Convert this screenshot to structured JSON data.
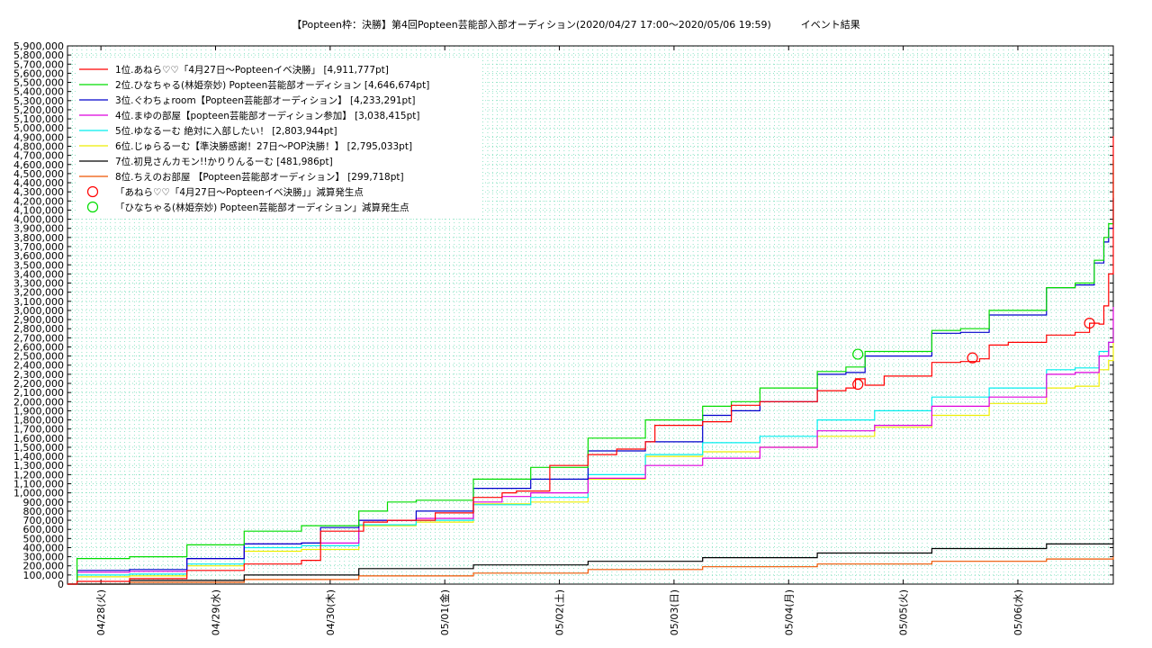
{
  "chart_data": {
    "type": "line",
    "title": "【Popteen枠：決勝】第4回Popteen芸能部入部オーディション(2020/04/27 17:00～2020/05/06 19:59)　　　イベント結果",
    "xlabel": "",
    "ylabel": "",
    "ylim": [
      0,
      5900000
    ],
    "xlim": [
      "2020-04-27T17:00",
      "2020-05-06T19:59"
    ],
    "grid": true,
    "legend_position": "top-left",
    "y_ticks": [
      "0",
      "100,000",
      "200,000",
      "300,000",
      "400,000",
      "500,000",
      "600,000",
      "700,000",
      "800,000",
      "900,000",
      "1,000,000",
      "1,100,000",
      "1,200,000",
      "1,300,000",
      "1,400,000",
      "1,500,000",
      "1,600,000",
      "1,700,000",
      "1,800,000",
      "1,900,000",
      "2,000,000",
      "2,100,000",
      "2,200,000",
      "2,300,000",
      "2,400,000",
      "2,500,000",
      "2,600,000",
      "2,700,000",
      "2,800,000",
      "2,900,000",
      "3,000,000",
      "3,100,000",
      "3,200,000",
      "3,300,000",
      "3,400,000",
      "3,500,000",
      "3,600,000",
      "3,700,000",
      "3,800,000",
      "3,900,000",
      "4,000,000",
      "4,100,000",
      "4,200,000",
      "4,300,000",
      "4,400,000",
      "4,500,000",
      "4,600,000",
      "4,700,000",
      "4,800,000",
      "4,900,000",
      "5,000,000",
      "5,100,000",
      "5,200,000",
      "5,300,000",
      "5,400,000",
      "5,500,000",
      "5,600,000",
      "5,700,000",
      "5,800,000",
      "5,900,000"
    ],
    "x_ticks": [
      {
        "label": "04/28(火)",
        "x": "2020-04-28T00:00"
      },
      {
        "label": "04/29(水)",
        "x": "2020-04-29T00:00"
      },
      {
        "label": "04/30(木)",
        "x": "2020-04-30T00:00"
      },
      {
        "label": "05/01(金)",
        "x": "2020-05-01T00:00"
      },
      {
        "label": "05/02(土)",
        "x": "2020-05-02T00:00"
      },
      {
        "label": "05/03(日)",
        "x": "2020-05-03T00:00"
      },
      {
        "label": "05/04(月)",
        "x": "2020-05-04T00:00"
      },
      {
        "label": "05/05(火)",
        "x": "2020-05-05T00:00"
      },
      {
        "label": "05/06(水)",
        "x": "2020-05-06T00:00"
      }
    ],
    "series": [
      {
        "name": "1位.あねら♡♡「4月27日～Popteenイベ決勝」 [4,911,777pt]",
        "color": "#ff0000",
        "x": [
          "2020-04-27T17:00",
          "2020-04-27T19:00",
          "2020-04-28T06:00",
          "2020-04-28T18:00",
          "2020-04-29T06:00",
          "2020-04-29T18:00",
          "2020-04-29T22:00",
          "2020-04-30T07:00",
          "2020-04-30T12:00",
          "2020-04-30T22:00",
          "2020-05-01T06:00",
          "2020-05-01T12:00",
          "2020-05-01T15:00",
          "2020-05-01T22:00",
          "2020-05-02T06:00",
          "2020-05-02T12:00",
          "2020-05-02T18:00",
          "2020-05-02T20:00",
          "2020-05-03T06:00",
          "2020-05-03T12:00",
          "2020-05-03T18:00",
          "2020-05-04T06:00",
          "2020-05-04T12:00",
          "2020-05-04T14:00",
          "2020-05-04T16:00",
          "2020-05-04T20:00",
          "2020-05-05T06:00",
          "2020-05-05T12:00",
          "2020-05-05T16:00",
          "2020-05-05T18:00",
          "2020-05-05T22:00",
          "2020-05-06T06:00",
          "2020-05-06T12:00",
          "2020-05-06T15:00",
          "2020-05-06T17:00",
          "2020-05-06T18:00",
          "2020-05-06T19:00",
          "2020-05-06T19:59"
        ],
        "y": [
          0,
          30000,
          60000,
          150000,
          220000,
          260000,
          580000,
          680000,
          700000,
          780000,
          950000,
          1000000,
          1020000,
          1300000,
          1420000,
          1480000,
          1560000,
          1740000,
          1780000,
          1960000,
          2000000,
          2120000,
          2150000,
          2250000,
          2180000,
          2280000,
          2430000,
          2440000,
          2470000,
          2620000,
          2650000,
          2730000,
          2760000,
          2860000,
          2850000,
          3050000,
          3400000,
          4911777
        ]
      },
      {
        "name": "2位.ひなちゃる(林姫奈妙) Popteen芸能部オーディション [4,646,674pt]",
        "color": "#00dd00",
        "x": [
          "2020-04-27T17:00",
          "2020-04-27T19:00",
          "2020-04-28T06:00",
          "2020-04-28T18:00",
          "2020-04-29T06:00",
          "2020-04-29T18:00",
          "2020-04-30T06:00",
          "2020-04-30T12:00",
          "2020-04-30T18:00",
          "2020-05-01T06:00",
          "2020-05-01T18:00",
          "2020-05-02T06:00",
          "2020-05-02T18:00",
          "2020-05-03T06:00",
          "2020-05-03T12:00",
          "2020-05-03T18:00",
          "2020-05-04T06:00",
          "2020-05-04T12:00",
          "2020-05-04T16:00",
          "2020-05-05T06:00",
          "2020-05-05T12:00",
          "2020-05-05T18:00",
          "2020-05-06T06:00",
          "2020-05-06T12:00",
          "2020-05-06T16:00",
          "2020-05-06T18:00",
          "2020-05-06T19:00",
          "2020-05-06T19:59"
        ],
        "y": [
          0,
          280000,
          300000,
          430000,
          580000,
          640000,
          800000,
          900000,
          920000,
          1150000,
          1280000,
          1600000,
          1800000,
          1950000,
          2000000,
          2150000,
          2330000,
          2380000,
          2550000,
          2780000,
          2800000,
          3000000,
          3250000,
          3300000,
          3550000,
          3800000,
          3950000,
          4646674
        ]
      },
      {
        "name": "3位.ぐわちょroom【Popteen芸能部オーディション】 [4,233,291pt]",
        "color": "#0000cc",
        "x": [
          "2020-04-27T17:00",
          "2020-04-27T19:00",
          "2020-04-28T06:00",
          "2020-04-28T18:00",
          "2020-04-29T06:00",
          "2020-04-29T18:00",
          "2020-04-29T22:00",
          "2020-04-30T06:00",
          "2020-04-30T18:00",
          "2020-05-01T06:00",
          "2020-05-01T18:00",
          "2020-05-02T06:00",
          "2020-05-02T18:00",
          "2020-05-03T06:00",
          "2020-05-03T12:00",
          "2020-05-03T18:00",
          "2020-05-04T06:00",
          "2020-05-04T12:00",
          "2020-05-04T16:00",
          "2020-05-05T06:00",
          "2020-05-05T12:00",
          "2020-05-05T18:00",
          "2020-05-06T06:00",
          "2020-05-06T12:00",
          "2020-05-06T16:00",
          "2020-05-06T18:00",
          "2020-05-06T19:00",
          "2020-05-06T19:59"
        ],
        "y": [
          0,
          150000,
          160000,
          280000,
          440000,
          450000,
          620000,
          700000,
          800000,
          1050000,
          1150000,
          1460000,
          1560000,
          1850000,
          1900000,
          2000000,
          2300000,
          2320000,
          2500000,
          2750000,
          2760000,
          2950000,
          3250000,
          3280000,
          3520000,
          3750000,
          3900000,
          4233291
        ]
      },
      {
        "name": "4位.まゆの部屋【popteen芸能部オーディション参加】 [3,038,415pt]",
        "color": "#dd00dd",
        "x": [
          "2020-04-27T17:00",
          "2020-04-27T19:00",
          "2020-04-28T06:00",
          "2020-04-28T18:00",
          "2020-04-29T06:00",
          "2020-04-29T18:00",
          "2020-04-30T06:00",
          "2020-04-30T18:00",
          "2020-05-01T06:00",
          "2020-05-01T12:00",
          "2020-05-01T18:00",
          "2020-05-02T06:00",
          "2020-05-02T18:00",
          "2020-05-03T06:00",
          "2020-05-03T18:00",
          "2020-05-04T06:00",
          "2020-05-04T18:00",
          "2020-05-05T06:00",
          "2020-05-05T18:00",
          "2020-05-06T06:00",
          "2020-05-06T12:00",
          "2020-05-06T17:00",
          "2020-05-06T19:00",
          "2020-05-06T19:59"
        ],
        "y": [
          0,
          130000,
          140000,
          280000,
          440000,
          450000,
          700000,
          720000,
          900000,
          960000,
          1000000,
          1160000,
          1300000,
          1380000,
          1500000,
          1680000,
          1740000,
          1950000,
          2050000,
          2300000,
          2320000,
          2500000,
          2650000,
          3038415
        ]
      },
      {
        "name": "5位.ゆなるーむ 絶対に入部したい！ [2,803,944pt]",
        "color": "#00eeee",
        "x": [
          "2020-04-27T17:00",
          "2020-04-27T19:00",
          "2020-04-28T06:00",
          "2020-04-28T18:00",
          "2020-04-29T06:00",
          "2020-04-29T18:00",
          "2020-04-30T06:00",
          "2020-04-30T18:00",
          "2020-05-01T06:00",
          "2020-05-01T18:00",
          "2020-05-02T06:00",
          "2020-05-02T18:00",
          "2020-05-03T06:00",
          "2020-05-03T18:00",
          "2020-05-04T06:00",
          "2020-05-04T18:00",
          "2020-05-05T06:00",
          "2020-05-05T18:00",
          "2020-05-06T06:00",
          "2020-05-06T12:00",
          "2020-05-06T17:00",
          "2020-05-06T19:00",
          "2020-05-06T19:59"
        ],
        "y": [
          0,
          100000,
          110000,
          220000,
          400000,
          420000,
          650000,
          700000,
          870000,
          950000,
          1200000,
          1420000,
          1550000,
          1620000,
          1800000,
          1900000,
          2050000,
          2150000,
          2350000,
          2370000,
          2550000,
          2650000,
          2803944
        ]
      },
      {
        "name": "6位.じゅらるーむ【準決勝感謝！27日～POP決勝！】 [2,795,033pt]",
        "color": "#eeee00",
        "x": [
          "2020-04-27T17:00",
          "2020-04-27T19:00",
          "2020-04-28T06:00",
          "2020-04-28T18:00",
          "2020-04-29T06:00",
          "2020-04-29T18:00",
          "2020-04-30T06:00",
          "2020-04-30T18:00",
          "2020-05-01T06:00",
          "2020-05-01T18:00",
          "2020-05-02T06:00",
          "2020-05-02T18:00",
          "2020-05-03T06:00",
          "2020-05-03T18:00",
          "2020-05-04T06:00",
          "2020-05-04T18:00",
          "2020-05-05T06:00",
          "2020-05-05T18:00",
          "2020-05-06T06:00",
          "2020-05-06T12:00",
          "2020-05-06T17:00",
          "2020-05-06T19:00",
          "2020-05-06T19:59"
        ],
        "y": [
          0,
          80000,
          90000,
          200000,
          360000,
          380000,
          640000,
          680000,
          880000,
          900000,
          1150000,
          1400000,
          1450000,
          1500000,
          1620000,
          1720000,
          1850000,
          1980000,
          2150000,
          2170000,
          2350000,
          2450000,
          2795033
        ]
      },
      {
        "name": "7位.初見さんカモン!!かりりんるーむ [481,986pt]",
        "color": "#000000",
        "x": [
          "2020-04-27T17:00",
          "2020-04-28T06:00",
          "2020-04-29T06:00",
          "2020-04-30T06:00",
          "2020-05-01T06:00",
          "2020-05-02T06:00",
          "2020-05-03T06:00",
          "2020-05-04T06:00",
          "2020-05-05T06:00",
          "2020-05-06T06:00",
          "2020-05-06T19:59"
        ],
        "y": [
          0,
          40000,
          100000,
          170000,
          210000,
          250000,
          290000,
          340000,
          390000,
          440000,
          481986
        ]
      },
      {
        "name": "8位.ちえのお部屋 【Popteen芸能部オーディション】 [299,718pt]",
        "color": "#ee5500",
        "x": [
          "2020-04-27T17:00",
          "2020-04-28T06:00",
          "2020-04-29T06:00",
          "2020-04-30T06:00",
          "2020-05-01T06:00",
          "2020-05-02T06:00",
          "2020-05-03T06:00",
          "2020-05-04T06:00",
          "2020-05-05T06:00",
          "2020-05-06T06:00",
          "2020-05-06T19:59"
        ],
        "y": [
          0,
          20000,
          50000,
          90000,
          120000,
          160000,
          190000,
          220000,
          250000,
          275000,
          299718
        ]
      }
    ],
    "markers": [
      {
        "name": "「あねら♡♡「4月27日～Popteenイベ決勝」」減算発生点",
        "color": "#ff0000",
        "points": [
          {
            "x": "2020-05-04T14:30",
            "y": 2190000
          },
          {
            "x": "2020-05-05T14:30",
            "y": 2480000
          },
          {
            "x": "2020-05-06T15:00",
            "y": 2860000
          }
        ]
      },
      {
        "name": "「ひなちゃる(林姫奈妙) Popteen芸能部オーディション」減算発生点",
        "color": "#00dd00",
        "points": [
          {
            "x": "2020-05-04T14:30",
            "y": 2520000
          }
        ]
      }
    ]
  }
}
